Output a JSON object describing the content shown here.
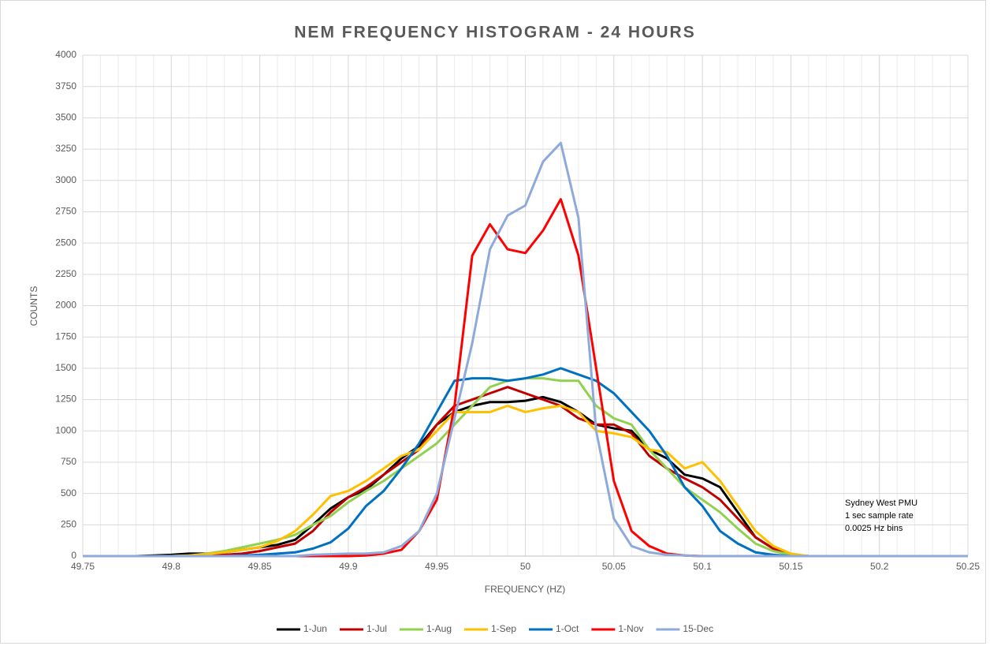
{
  "chart_data": {
    "type": "line",
    "title": "NEM FREQUENCY HISTOGRAM - 24 HOURS",
    "xlabel": "FREQUENCY (HZ)",
    "ylabel": "COUNTS",
    "annotation": [
      "Sydney West PMU",
      "1 sec sample rate",
      "0.0025 Hz bins"
    ],
    "x": [
      49.75,
      49.76,
      49.77,
      49.78,
      49.79,
      49.8,
      49.81,
      49.82,
      49.83,
      49.84,
      49.85,
      49.86,
      49.87,
      49.88,
      49.89,
      49.9,
      49.91,
      49.92,
      49.93,
      49.94,
      49.95,
      49.96,
      49.97,
      49.98,
      49.99,
      50,
      50.01,
      50.02,
      50.03,
      50.04,
      50.05,
      50.06,
      50.07,
      50.08,
      50.09,
      50.1,
      50.11,
      50.12,
      50.13,
      50.14,
      50.15,
      50.16,
      50.17,
      50.18,
      50.19,
      50.2,
      50.21,
      50.22,
      50.23,
      50.24,
      50.25
    ],
    "xlim": [
      49.75,
      50.25
    ],
    "xticks": [
      49.75,
      49.8,
      49.85,
      49.9,
      49.95,
      50,
      50.05,
      50.1,
      50.15,
      50.2,
      50.25
    ],
    "ylim": [
      0,
      4000
    ],
    "yticks": [
      0,
      250,
      500,
      750,
      1000,
      1250,
      1500,
      1750,
      2000,
      2250,
      2500,
      2750,
      3000,
      3250,
      3500,
      3750,
      4000
    ],
    "grid": true,
    "legend": "bottom",
    "series": [
      {
        "name": "1-Jun",
        "color": "#000000",
        "values": [
          0,
          0,
          0,
          0,
          5,
          10,
          20,
          20,
          30,
          50,
          70,
          90,
          130,
          250,
          380,
          470,
          530,
          650,
          780,
          880,
          1050,
          1150,
          1200,
          1230,
          1230,
          1240,
          1270,
          1230,
          1150,
          1050,
          1020,
          1000,
          850,
          780,
          650,
          620,
          550,
          350,
          150,
          60,
          10,
          0,
          0,
          0,
          0,
          0,
          0,
          0,
          0,
          0,
          0
        ]
      },
      {
        "name": "1-Jul",
        "color": "#c00000",
        "values": [
          0,
          0,
          0,
          0,
          0,
          0,
          0,
          5,
          10,
          20,
          40,
          70,
          100,
          200,
          350,
          470,
          550,
          650,
          750,
          850,
          1050,
          1200,
          1250,
          1300,
          1350,
          1300,
          1250,
          1200,
          1100,
          1050,
          1050,
          980,
          800,
          700,
          620,
          550,
          450,
          300,
          150,
          60,
          15,
          0,
          0,
          0,
          0,
          0,
          0,
          0,
          0,
          0,
          0
        ]
      },
      {
        "name": "1-Aug",
        "color": "#92d050",
        "values": [
          0,
          0,
          0,
          0,
          0,
          0,
          5,
          20,
          40,
          70,
          100,
          130,
          170,
          250,
          320,
          430,
          520,
          600,
          700,
          800,
          900,
          1050,
          1200,
          1350,
          1400,
          1420,
          1420,
          1400,
          1400,
          1200,
          1100,
          1050,
          850,
          700,
          550,
          450,
          350,
          220,
          100,
          40,
          10,
          0,
          0,
          0,
          0,
          0,
          0,
          0,
          0,
          0,
          0
        ]
      },
      {
        "name": "1-Sep",
        "color": "#ffc000",
        "values": [
          0,
          0,
          0,
          0,
          0,
          0,
          5,
          15,
          30,
          50,
          70,
          120,
          200,
          330,
          480,
          520,
          600,
          700,
          800,
          850,
          1000,
          1150,
          1150,
          1150,
          1200,
          1150,
          1180,
          1200,
          1150,
          1000,
          980,
          950,
          850,
          830,
          700,
          750,
          600,
          400,
          200,
          80,
          20,
          0,
          0,
          0,
          0,
          0,
          0,
          0,
          0,
          0,
          0
        ]
      },
      {
        "name": "1-Oct",
        "color": "#0070c0",
        "values": [
          0,
          0,
          0,
          0,
          0,
          0,
          0,
          0,
          0,
          5,
          10,
          20,
          30,
          60,
          110,
          220,
          400,
          520,
          700,
          900,
          1150,
          1400,
          1420,
          1420,
          1400,
          1420,
          1450,
          1500,
          1450,
          1400,
          1300,
          1150,
          1000,
          800,
          550,
          400,
          200,
          100,
          30,
          10,
          0,
          0,
          0,
          0,
          0,
          0,
          0,
          0,
          0,
          0,
          0
        ]
      },
      {
        "name": "1-Nov",
        "color": "#ff0000",
        "values": [
          0,
          0,
          0,
          0,
          0,
          0,
          0,
          0,
          0,
          0,
          0,
          0,
          0,
          0,
          0,
          0,
          5,
          20,
          50,
          200,
          450,
          1200,
          2400,
          2650,
          2450,
          2420,
          2600,
          2850,
          2400,
          1500,
          600,
          200,
          80,
          20,
          5,
          0,
          0,
          0,
          0,
          0,
          0,
          0,
          0,
          0,
          0,
          0,
          0,
          0,
          0,
          0,
          0
        ]
      },
      {
        "name": "15-Dec",
        "color": "#8eaadb",
        "values": [
          0,
          0,
          0,
          0,
          0,
          0,
          0,
          0,
          0,
          0,
          0,
          0,
          0,
          10,
          15,
          20,
          20,
          30,
          80,
          200,
          500,
          1100,
          1700,
          2450,
          2720,
          2800,
          3150,
          3300,
          2700,
          1000,
          300,
          80,
          30,
          10,
          5,
          0,
          0,
          0,
          0,
          0,
          0,
          0,
          0,
          0,
          0,
          0,
          0,
          0,
          0,
          0,
          0
        ]
      }
    ]
  }
}
